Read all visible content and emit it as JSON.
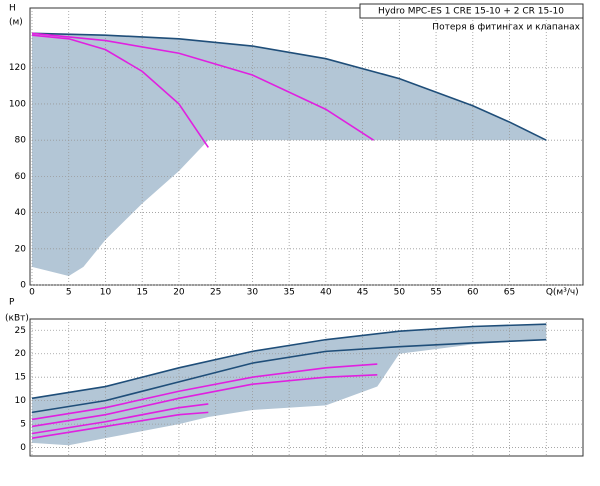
{
  "chart_data": [
    {
      "type": "line",
      "title": "Hydro MPC-ES 1 CRE 15-10  +  2 CR 15-10",
      "subtitle": "Потеря в фитингах и клапанах",
      "y_label_top": "H",
      "y_label_unit": "(м)",
      "xlim": [
        0,
        75
      ],
      "ylim": [
        0,
        153
      ],
      "xticks": [
        0,
        5,
        10,
        15,
        20,
        25,
        30,
        35,
        40,
        45,
        50,
        55,
        60,
        65,
        {
          "value": 70,
          "label": "Q(м³/ч)"
        }
      ],
      "yticks": [
        0,
        20,
        40,
        60,
        80,
        100,
        120
      ],
      "grid": true,
      "area": {
        "color": "#b3c6d6",
        "x": [
          0,
          10,
          20,
          30,
          40,
          50,
          60,
          65,
          70,
          26,
          24,
          20,
          15,
          10,
          7,
          5,
          0
        ],
        "y": [
          139,
          138,
          136,
          132,
          125,
          114,
          99,
          90,
          80,
          80,
          80,
          63,
          45,
          25,
          10,
          5,
          10
        ]
      },
      "series": [
        {
          "color": "#1f4e79",
          "x": [
            0,
            10,
            20,
            30,
            40,
            50,
            60,
            65,
            70
          ],
          "y": [
            139,
            138,
            136,
            132,
            125,
            114,
            99,
            90,
            80
          ]
        },
        {
          "color": "#e020e0",
          "x": [
            0,
            5,
            10,
            15,
            20,
            24
          ],
          "y": [
            138,
            136,
            130,
            118,
            100,
            76
          ]
        },
        {
          "color": "#e020e0",
          "x": [
            0,
            10,
            20,
            30,
            40,
            46.5
          ],
          "y": [
            139,
            135,
            128,
            116,
            97,
            80
          ]
        }
      ]
    },
    {
      "type": "line",
      "y_label_top": "P",
      "y_label_unit": "(кВт)",
      "xlim": [
        0,
        75
      ],
      "ylim": [
        -1.8,
        27.4
      ],
      "yticks": [
        0,
        5,
        10,
        15,
        20,
        25
      ],
      "grid": true,
      "area": {
        "color": "#b3c6d6",
        "x": [
          0,
          10,
          20,
          30,
          40,
          50,
          60,
          70,
          70,
          60,
          50,
          47,
          40,
          30,
          24,
          20,
          10,
          5,
          0
        ],
        "y": [
          10.5,
          13,
          17,
          20.5,
          23,
          24.8,
          25.8,
          26.3,
          23,
          22,
          20,
          13,
          9,
          8,
          6.5,
          5,
          2,
          0.5,
          1
        ]
      },
      "series": [
        {
          "color": "#1f4e79",
          "x": [
            0,
            10,
            20,
            30,
            40,
            50,
            60,
            70
          ],
          "y": [
            10.5,
            13,
            17,
            20.5,
            23,
            24.8,
            25.8,
            26.3
          ]
        },
        {
          "color": "#1f4e79",
          "x": [
            0,
            10,
            20,
            30,
            40,
            50,
            60,
            70
          ],
          "y": [
            7.5,
            10,
            14,
            18,
            20.5,
            21.5,
            22.3,
            23
          ]
        },
        {
          "color": "#e020e0",
          "x": [
            0,
            10,
            20,
            30,
            40,
            47
          ],
          "y": [
            6,
            8.5,
            12,
            15,
            17,
            17.8
          ]
        },
        {
          "color": "#e020e0",
          "x": [
            0,
            10,
            20,
            30,
            40,
            47
          ],
          "y": [
            4.5,
            7,
            10.5,
            13.5,
            15,
            15.5
          ]
        },
        {
          "color": "#e020e0",
          "x": [
            0,
            10,
            20,
            24
          ],
          "y": [
            3,
            5.5,
            8.5,
            9.3
          ]
        },
        {
          "color": "#e020e0",
          "x": [
            0,
            10,
            20,
            24
          ],
          "y": [
            2,
            4.5,
            7,
            7.5
          ]
        }
      ]
    }
  ]
}
